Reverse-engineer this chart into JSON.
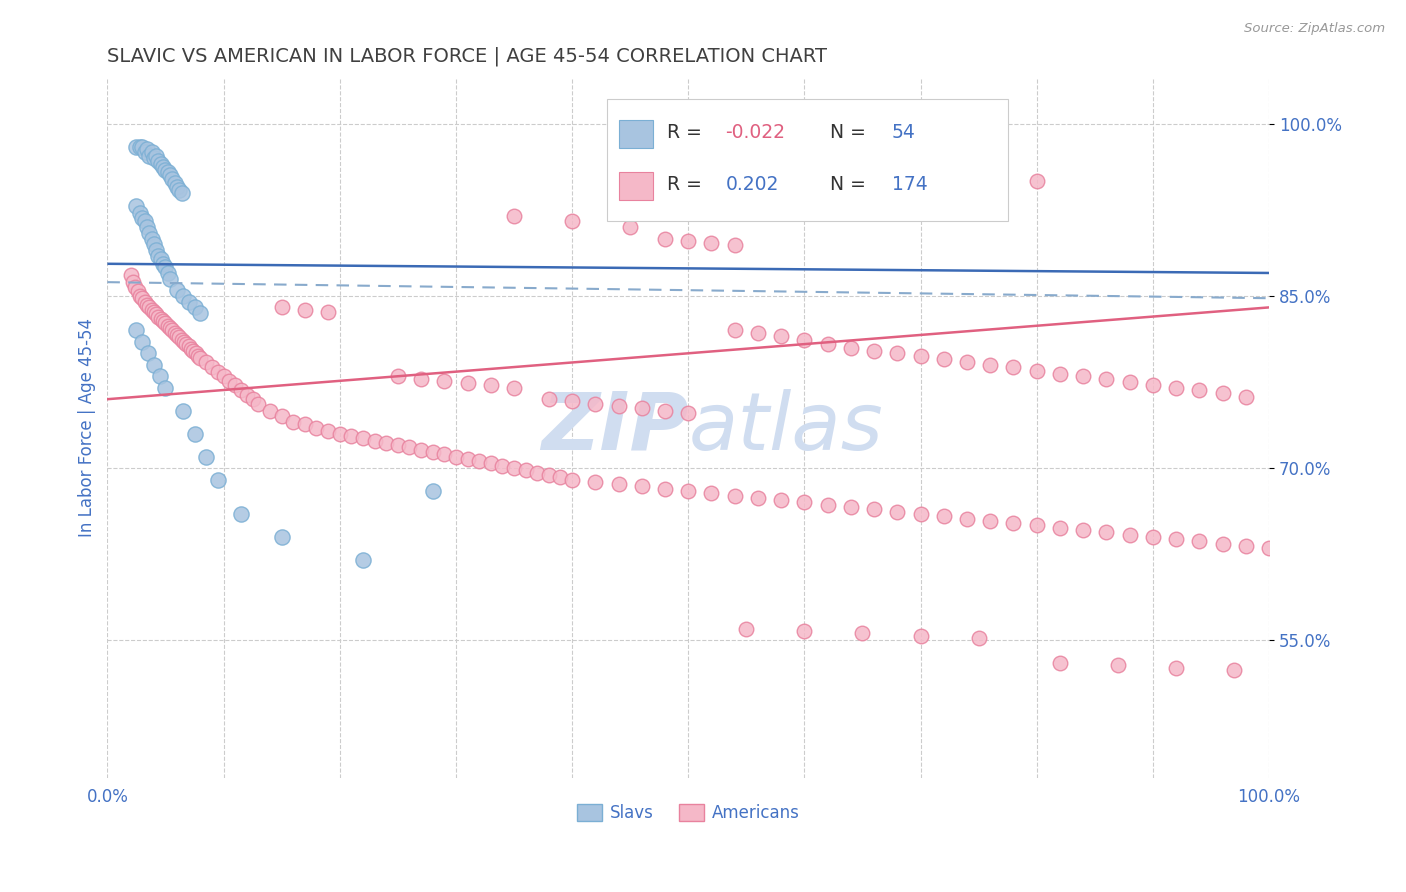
{
  "title": "SLAVIC VS AMERICAN IN LABOR FORCE | AGE 45-54 CORRELATION CHART",
  "source": "Source: ZipAtlas.com",
  "ylabel": "In Labor Force | Age 45-54",
  "legend_label1": "Slavs",
  "legend_label2": "Americans",
  "blue_scatter_color": "#a8c4e0",
  "blue_edge_color": "#7bafd4",
  "pink_scatter_color": "#f5b8c8",
  "pink_edge_color": "#e8829e",
  "trend_blue_color": "#3b6ab5",
  "trend_pink_color": "#e06080",
  "trend_dashed_color": "#88aacc",
  "grid_color": "#cccccc",
  "title_color": "#404040",
  "axis_label_color": "#4472c4",
  "background": "#ffffff",
  "watermark_color": "#d0ddf0",
  "y_ticks": [
    0.55,
    0.7,
    0.85,
    1.0
  ],
  "y_tick_labels": [
    "55.0%",
    "70.0%",
    "85.0%",
    "100.0%"
  ],
  "xlim": [
    0.0,
    1.0
  ],
  "ylim": [
    0.43,
    1.04
  ],
  "blue_trend": [
    0.878,
    0.87
  ],
  "dashed_trend": [
    0.862,
    0.848
  ],
  "pink_trend": [
    0.76,
    0.84
  ],
  "slavs_x": [
    0.025,
    0.028,
    0.03,
    0.032,
    0.034,
    0.036,
    0.038,
    0.04,
    0.042,
    0.044,
    0.046,
    0.048,
    0.05,
    0.052,
    0.054,
    0.056,
    0.058,
    0.06,
    0.062,
    0.064,
    0.025,
    0.028,
    0.03,
    0.032,
    0.034,
    0.036,
    0.038,
    0.04,
    0.042,
    0.044,
    0.046,
    0.048,
    0.05,
    0.052,
    0.054,
    0.06,
    0.065,
    0.07,
    0.075,
    0.08,
    0.025,
    0.03,
    0.035,
    0.04,
    0.045,
    0.05,
    0.065,
    0.075,
    0.085,
    0.095,
    0.115,
    0.15,
    0.22,
    0.28
  ],
  "slavs_y": [
    0.98,
    0.98,
    0.98,
    0.975,
    0.978,
    0.972,
    0.975,
    0.97,
    0.972,
    0.968,
    0.965,
    0.962,
    0.96,
    0.958,
    0.955,
    0.952,
    0.948,
    0.945,
    0.942,
    0.94,
    0.928,
    0.922,
    0.918,
    0.915,
    0.91,
    0.905,
    0.9,
    0.895,
    0.89,
    0.885,
    0.882,
    0.878,
    0.875,
    0.87,
    0.865,
    0.855,
    0.85,
    0.845,
    0.84,
    0.835,
    0.82,
    0.81,
    0.8,
    0.79,
    0.78,
    0.77,
    0.75,
    0.73,
    0.71,
    0.69,
    0.66,
    0.64,
    0.62,
    0.68
  ],
  "americans_x": [
    0.02,
    0.022,
    0.024,
    0.026,
    0.028,
    0.03,
    0.032,
    0.034,
    0.036,
    0.038,
    0.04,
    0.042,
    0.044,
    0.046,
    0.048,
    0.05,
    0.052,
    0.054,
    0.056,
    0.058,
    0.06,
    0.062,
    0.064,
    0.066,
    0.068,
    0.07,
    0.072,
    0.074,
    0.076,
    0.078,
    0.08,
    0.085,
    0.09,
    0.095,
    0.1,
    0.105,
    0.11,
    0.115,
    0.12,
    0.125,
    0.13,
    0.14,
    0.15,
    0.16,
    0.17,
    0.18,
    0.19,
    0.2,
    0.21,
    0.22,
    0.23,
    0.24,
    0.25,
    0.26,
    0.27,
    0.28,
    0.29,
    0.3,
    0.31,
    0.32,
    0.33,
    0.34,
    0.35,
    0.36,
    0.37,
    0.38,
    0.39,
    0.4,
    0.42,
    0.44,
    0.46,
    0.48,
    0.5,
    0.52,
    0.54,
    0.56,
    0.58,
    0.6,
    0.62,
    0.64,
    0.66,
    0.68,
    0.7,
    0.72,
    0.74,
    0.76,
    0.78,
    0.8,
    0.82,
    0.84,
    0.86,
    0.88,
    0.9,
    0.92,
    0.94,
    0.96,
    0.98,
    1.0,
    0.54,
    0.56,
    0.58,
    0.6,
    0.62,
    0.64,
    0.66,
    0.68,
    0.7,
    0.72,
    0.74,
    0.76,
    0.78,
    0.8,
    0.82,
    0.84,
    0.86,
    0.88,
    0.9,
    0.92,
    0.94,
    0.96,
    0.98,
    0.38,
    0.4,
    0.42,
    0.44,
    0.46,
    0.48,
    0.5,
    0.25,
    0.27,
    0.29,
    0.31,
    0.33,
    0.35,
    0.15,
    0.17,
    0.19,
    0.48,
    0.5,
    0.52,
    0.54,
    0.6,
    0.65,
    0.7,
    0.75,
    0.8,
    0.35,
    0.4,
    0.45,
    0.55,
    0.6,
    0.65,
    0.7,
    0.75,
    0.82,
    0.87,
    0.92,
    0.97
  ],
  "americans_y": [
    0.868,
    0.862,
    0.858,
    0.854,
    0.85,
    0.848,
    0.845,
    0.842,
    0.84,
    0.838,
    0.836,
    0.834,
    0.832,
    0.83,
    0.828,
    0.826,
    0.824,
    0.822,
    0.82,
    0.818,
    0.816,
    0.814,
    0.812,
    0.81,
    0.808,
    0.806,
    0.804,
    0.802,
    0.8,
    0.798,
    0.796,
    0.792,
    0.788,
    0.784,
    0.78,
    0.776,
    0.772,
    0.768,
    0.764,
    0.76,
    0.756,
    0.75,
    0.745,
    0.74,
    0.738,
    0.735,
    0.732,
    0.73,
    0.728,
    0.726,
    0.724,
    0.722,
    0.72,
    0.718,
    0.716,
    0.714,
    0.712,
    0.71,
    0.708,
    0.706,
    0.704,
    0.702,
    0.7,
    0.698,
    0.696,
    0.694,
    0.692,
    0.69,
    0.688,
    0.686,
    0.684,
    0.682,
    0.68,
    0.678,
    0.676,
    0.674,
    0.672,
    0.67,
    0.668,
    0.666,
    0.664,
    0.662,
    0.66,
    0.658,
    0.656,
    0.654,
    0.652,
    0.65,
    0.648,
    0.646,
    0.644,
    0.642,
    0.64,
    0.638,
    0.636,
    0.634,
    0.632,
    0.63,
    0.82,
    0.818,
    0.815,
    0.812,
    0.808,
    0.805,
    0.802,
    0.8,
    0.798,
    0.795,
    0.792,
    0.79,
    0.788,
    0.785,
    0.782,
    0.78,
    0.778,
    0.775,
    0.772,
    0.77,
    0.768,
    0.765,
    0.762,
    0.76,
    0.758,
    0.756,
    0.754,
    0.752,
    0.75,
    0.748,
    0.78,
    0.778,
    0.776,
    0.774,
    0.772,
    0.77,
    0.84,
    0.838,
    0.836,
    0.9,
    0.898,
    0.896,
    0.894,
    0.97,
    0.965,
    0.96,
    0.955,
    0.95,
    0.92,
    0.915,
    0.91,
    0.56,
    0.558,
    0.556,
    0.554,
    0.552,
    0.53,
    0.528,
    0.526,
    0.524
  ]
}
